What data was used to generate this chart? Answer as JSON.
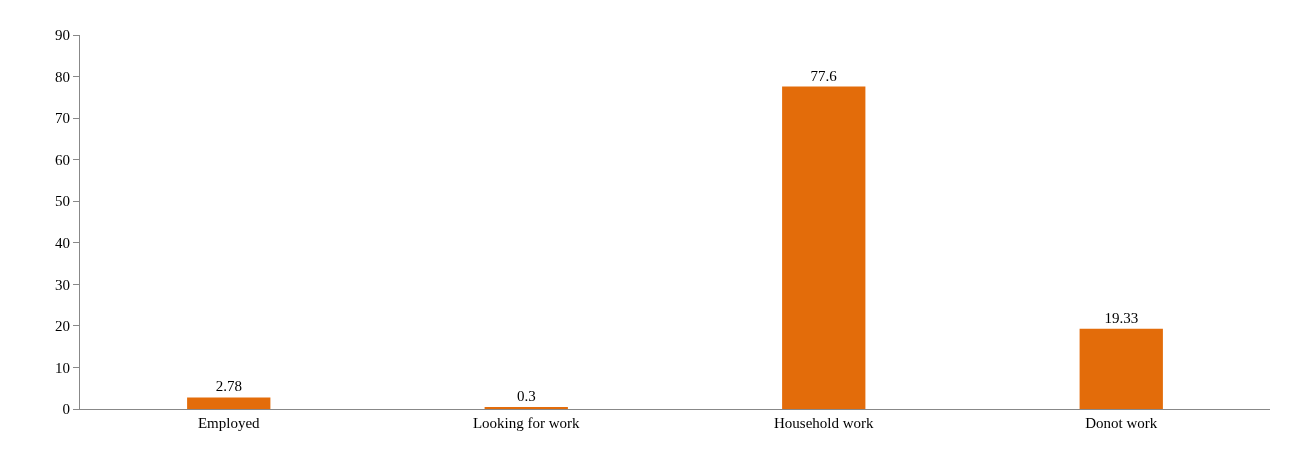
{
  "chart_data": {
    "type": "bar",
    "categories": [
      "Employed",
      "Looking for work",
      "Household work",
      "Donot work"
    ],
    "values": [
      2.78,
      0.3,
      77.6,
      19.33
    ],
    "color": "#e36c0a",
    "ylim": [
      0,
      90
    ],
    "yticks": [
      0,
      10,
      20,
      30,
      40,
      50,
      60,
      70,
      80,
      90
    ],
    "data_labels": true,
    "grid": false,
    "legend": false
  }
}
